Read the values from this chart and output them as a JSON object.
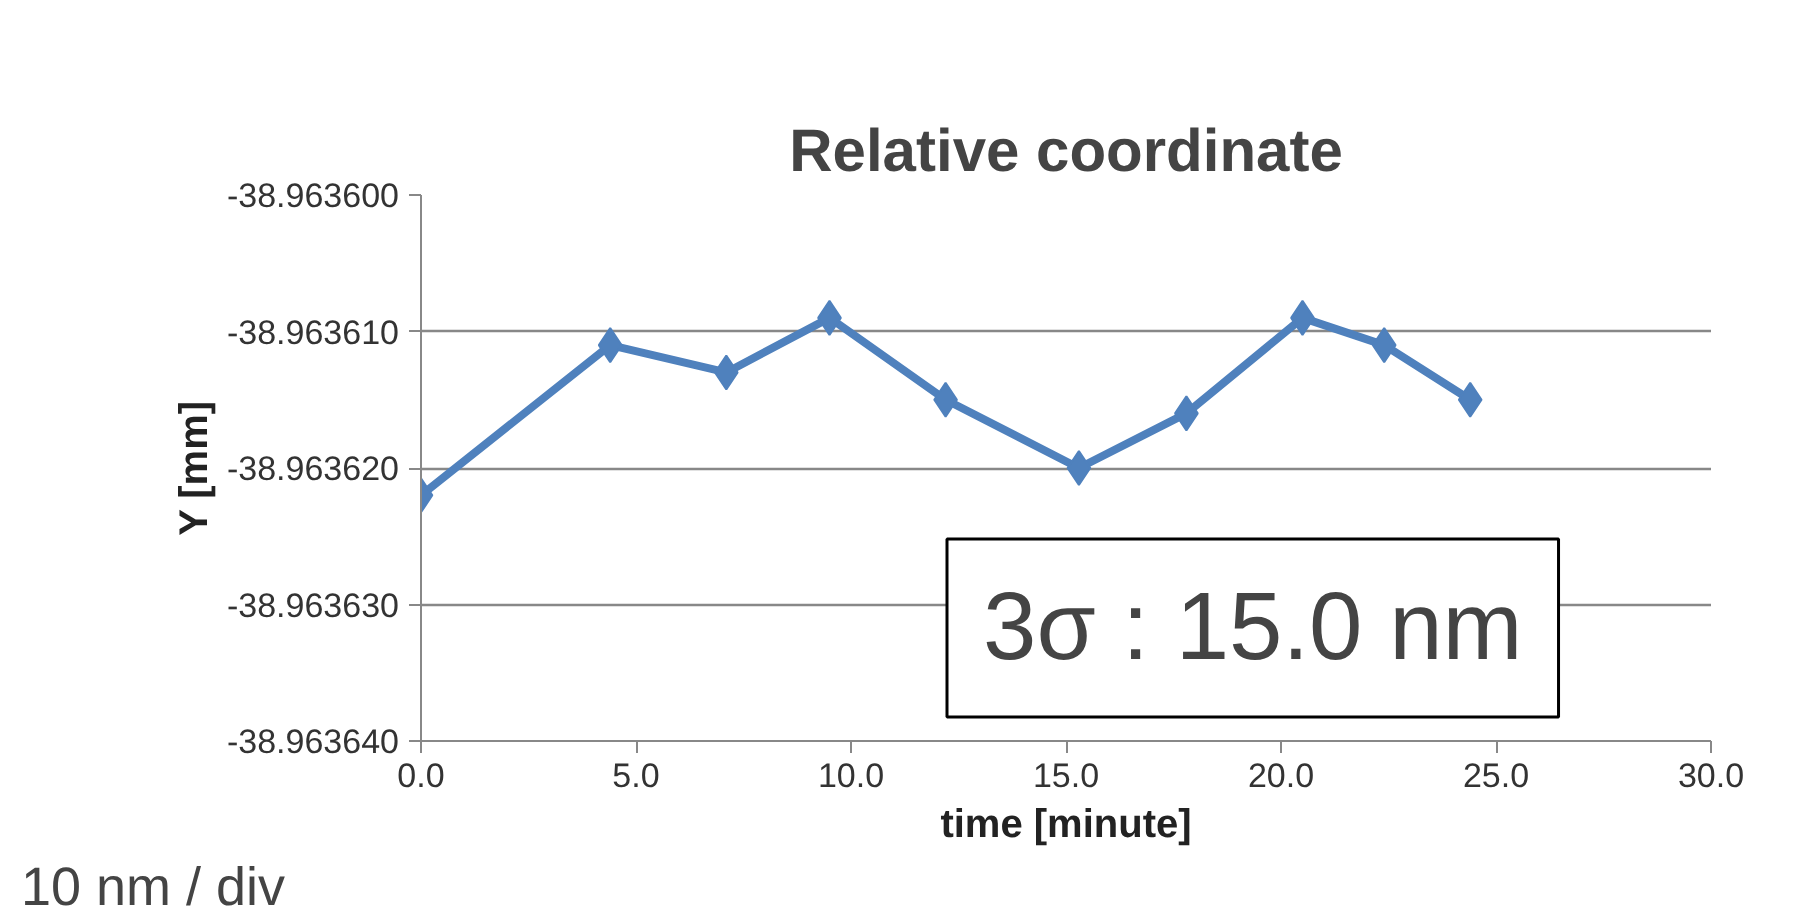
{
  "chart_data": {
    "type": "line",
    "title": "Relative coordinate",
    "xlabel": "time [minute]",
    "ylabel": "Y [mm]",
    "x": [
      0.0,
      4.4,
      7.1,
      9.5,
      12.2,
      15.3,
      17.8,
      20.5,
      22.4,
      24.4
    ],
    "series": [
      {
        "color": "#4f81bd",
        "values": [
          -38.963622,
          -38.963611,
          -38.963613,
          -38.963609,
          -38.963615,
          -38.96362,
          -38.963616,
          -38.963609,
          -38.963611,
          -38.963615
        ]
      }
    ],
    "xlim": [
      0,
      30
    ],
    "xticks": [
      {
        "value": 0,
        "label": "0.0"
      },
      {
        "value": 5,
        "label": "5.0"
      },
      {
        "value": 10,
        "label": "10.0"
      },
      {
        "value": 15,
        "label": "15.0"
      },
      {
        "value": 20,
        "label": "20.0"
      },
      {
        "value": 25,
        "label": "25.0"
      },
      {
        "value": 30,
        "label": "30.0"
      }
    ],
    "ylim": [
      -38.96364,
      -38.9636
    ],
    "yticks": [
      {
        "value": -38.96364,
        "label": "-38.963640"
      },
      {
        "value": -38.96363,
        "label": "-38.963630"
      },
      {
        "value": -38.96362,
        "label": "-38.963620"
      },
      {
        "value": -38.96361,
        "label": "-38.963610"
      },
      {
        "value": -38.9636,
        "label": "-38.963600"
      }
    ],
    "grid": "y",
    "marker": "diamond",
    "line_style": "solid",
    "annotations": [
      "3σ : 15.0 nm",
      "10 nm / div"
    ]
  }
}
